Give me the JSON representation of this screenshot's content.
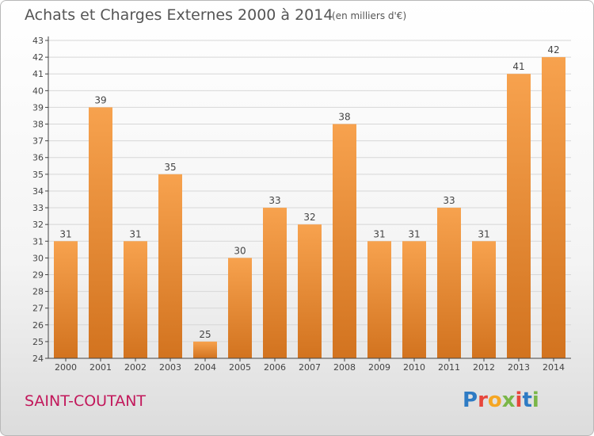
{
  "header": {
    "title": "Achats et Charges Externes 2000 à 2014",
    "unit": "(en milliers d'€)"
  },
  "footer": {
    "commune": "SAINT-COUTANT",
    "logo_text": "Proxiti",
    "logo_colors": [
      "#2e7bc4",
      "#e8463c",
      "#f5a623",
      "#7ab648",
      "#e8463c",
      "#2e7bc4",
      "#7ab648"
    ]
  },
  "colors": {
    "bar_top": "#f7a24e",
    "bar_bottom": "#d2731f",
    "grid": "#d7d7d7",
    "axis": "#444444",
    "text": "#444444"
  },
  "chart_data": {
    "type": "bar",
    "title": "Achats et Charges Externes 2000 à 2014",
    "xlabel": "",
    "ylabel": "",
    "categories": [
      "2000",
      "2001",
      "2002",
      "2003",
      "2004",
      "2005",
      "2006",
      "2007",
      "2008",
      "2009",
      "2010",
      "2011",
      "2012",
      "2013",
      "2014"
    ],
    "values": [
      31,
      39,
      31,
      35,
      25,
      30,
      33,
      32,
      38,
      31,
      31,
      33,
      31,
      41,
      42
    ],
    "ylim": [
      24,
      43
    ],
    "yticks": [
      24,
      25,
      26,
      27,
      28,
      29,
      30,
      31,
      32,
      33,
      34,
      35,
      36,
      37,
      38,
      39,
      40,
      41,
      42,
      43
    ],
    "grid": true,
    "data_labels": true
  }
}
